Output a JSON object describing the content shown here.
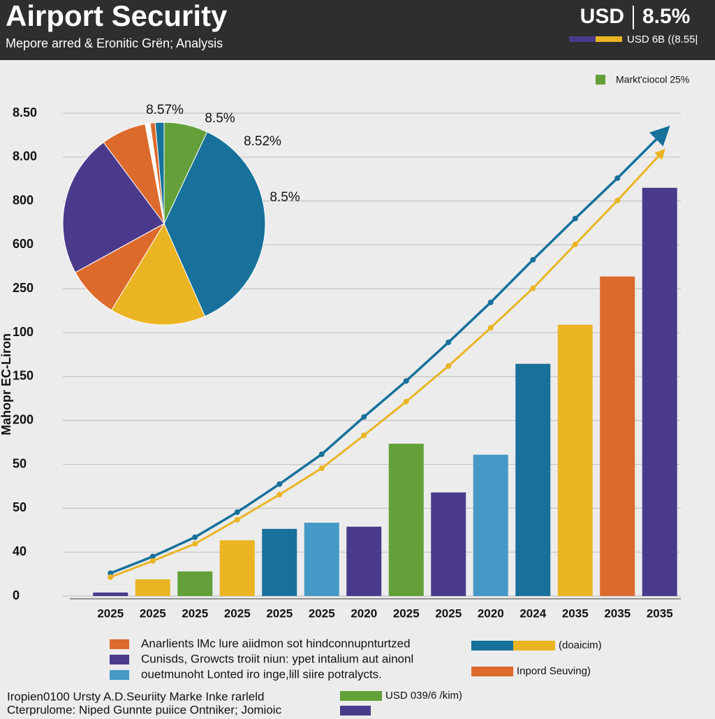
{
  "header": {
    "title": "Airport Security",
    "subtitle": "Mepore arred & Eronitic Grën; Analysis",
    "currency": "USD",
    "rate": "8.5%",
    "legend": "USD 6B ((8.55|"
  },
  "chart_data": [
    {
      "type": "bar",
      "y_label": "Mahopr EC-Liron",
      "categories": [
        "2025",
        "2025",
        "2025",
        "2025",
        "2025",
        "2025",
        "2020",
        "2025",
        "2025",
        "2020",
        "2024",
        "2035",
        "2035",
        "2035"
      ],
      "values": [
        0.08,
        0.38,
        0.56,
        1.27,
        1.53,
        1.67,
        1.58,
        3.47,
        2.36,
        3.22,
        5.29,
        6.18,
        7.28,
        9.3
      ],
      "colors": [
        "#4b3a8c",
        "#eab423",
        "#63a03a",
        "#eab423",
        "#17719b",
        "#4599c6",
        "#4b3a8c",
        "#63a03a",
        "#4b3a8c",
        "#4599c6",
        "#17719b",
        "#eab423",
        "#dc6a2c",
        "#4b3a8c"
      ],
      "lines": [
        {
          "color": "#17719b",
          "values": [
            0.52,
            0.9,
            1.34,
            1.91,
            2.55,
            3.23,
            4.08,
            4.9,
            5.78,
            6.69,
            7.66,
            8.6,
            9.52,
            10.48
          ]
        },
        {
          "color": "#eab423",
          "values": [
            0.43,
            0.8,
            1.19,
            1.74,
            2.31,
            2.91,
            3.66,
            4.43,
            5.24,
            6.11,
            7.01,
            8.01,
            9.01,
            10.05
          ]
        }
      ],
      "ylim": [
        0,
        11
      ],
      "yticks": [
        {
          "value": 0,
          "label": "0"
        },
        {
          "value": 1,
          "label": "40"
        },
        {
          "value": 2,
          "label": "50"
        },
        {
          "value": 3,
          "label": "50"
        },
        {
          "value": 4,
          "label": "200"
        },
        {
          "value": 5,
          "label": "150"
        },
        {
          "value": 6,
          "label": "100"
        },
        {
          "value": 7,
          "label": "250"
        },
        {
          "value": 8,
          "label": "600"
        },
        {
          "value": 9,
          "label": "800"
        },
        {
          "value": 10,
          "label": "8.00"
        },
        {
          "value": 11,
          "label": "8.50"
        }
      ],
      "grid": true,
      "legend": {
        "label": "Markt'ciocol 25%",
        "color": "#63a03a"
      }
    },
    {
      "type": "pie",
      "values": [
        7,
        36.4,
        15.3,
        8.3,
        22.8,
        7.2,
        0.8,
        0.8,
        1.4
      ],
      "colors": [
        "#63a03a",
        "#17719b",
        "#eab423",
        "#dc6a2c",
        "#4b3a8c",
        "#dc6a2c",
        "#ffffff",
        "#dc6a2c",
        "#17719b"
      ],
      "annotations": [
        "8.57%",
        "8.5%",
        "8.52%",
        "8.5%"
      ]
    }
  ],
  "legend": [
    {
      "label": "Anarlients lMc lure aiidmon sot hindconnupnturtzed",
      "color": "#dc6a2c"
    },
    {
      "label": "Cunisds, Growcts troiit niun: ypet intalium aut ainonl",
      "color": "#4b3a8c"
    },
    {
      "label": "ouetmunoht Lonted iro inge,lill siire potralycts.",
      "color": "#4599c6"
    },
    {
      "label": "(doaicim)",
      "colors": [
        "#17719b",
        "#eab423"
      ]
    },
    {
      "label": "Inpord Seuving)",
      "color": "#dc6a2c"
    },
    {
      "label": "USD 039/6 /kim)",
      "color": "#63a03a"
    }
  ],
  "footer": [
    "Iropien0100 Ursty A.D.Seuriity Marke Inke rarleld",
    "Cterprulome: Niped Gunnte puiice Ontniker; Jomioic"
  ]
}
